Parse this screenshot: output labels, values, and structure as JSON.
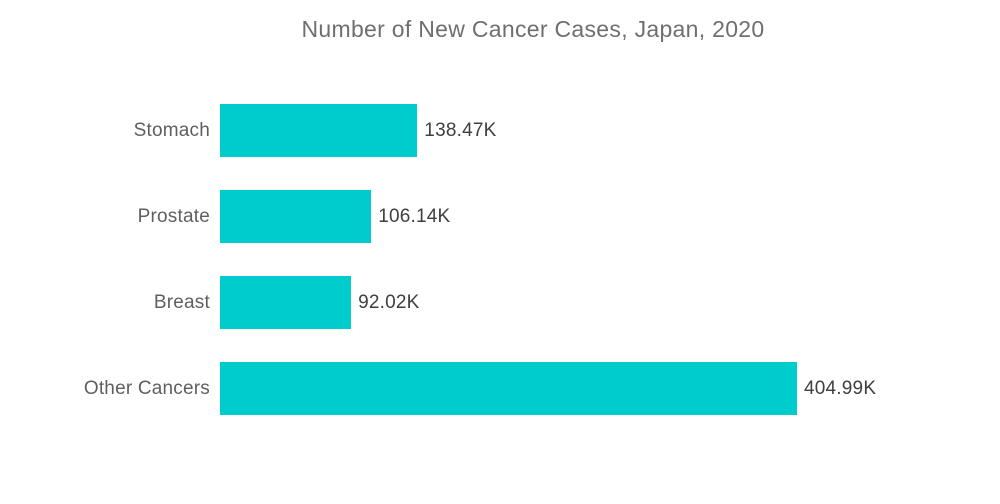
{
  "title": "Number of New Cancer Cases, Japan, 2020",
  "chart_data": {
    "type": "bar",
    "orientation": "horizontal",
    "title": "Number of New Cancer Cases, Japan, 2020",
    "xlabel": "",
    "ylabel": "",
    "categories": [
      "Stomach",
      "Prostate",
      "Breast",
      "Other Cancers"
    ],
    "values": [
      138.47,
      106.14,
      92.02,
      404.99
    ],
    "value_labels": [
      "138.47K",
      "106.14K",
      "92.02K",
      "404.99K"
    ],
    "unit": "K",
    "xlim": [
      0,
      420
    ],
    "grid": false,
    "legend": false,
    "bar_color": "#00CCCE"
  },
  "colors": {
    "bar": "#00CCCE",
    "title_text": "#6F6F6F",
    "category_text": "#5F5F5F",
    "value_text": "#3F3F3F",
    "background": "#FFFFFF"
  }
}
